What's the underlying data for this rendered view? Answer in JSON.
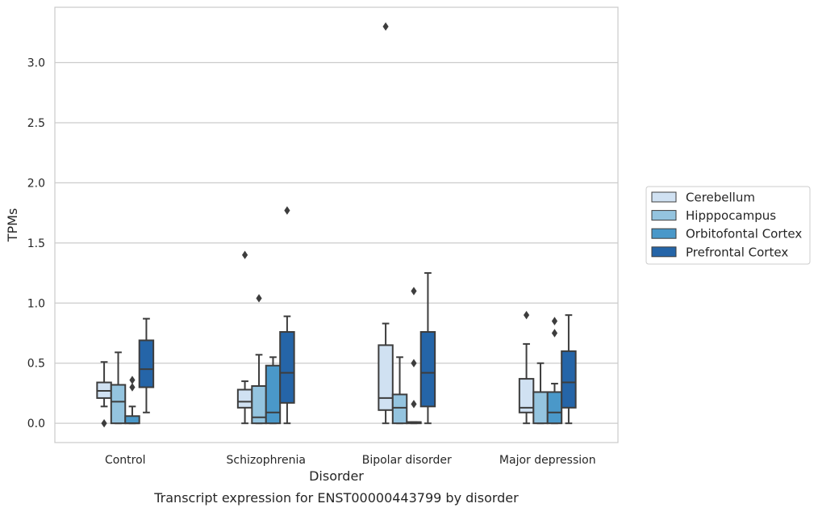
{
  "chart_data": {
    "type": "box",
    "xlabel": "Disorder",
    "ylabel": "TPMs",
    "caption": "Transcript expression for ENST00000443799 by disorder",
    "ylim": [
      -0.16,
      3.46
    ],
    "yticks": [
      0.0,
      0.5,
      1.0,
      1.5,
      2.0,
      2.5,
      3.0
    ],
    "ytick_labels": [
      "0.0",
      "0.5",
      "1.0",
      "1.5",
      "2.0",
      "2.5",
      "3.0"
    ],
    "grid": "horizontal",
    "legend_position": "right",
    "categories": [
      "Control",
      "Schizophrenia",
      "Bipolar disorder",
      "Major depression"
    ],
    "series": [
      {
        "name": "Cerebellum",
        "color": "#d0e1f2",
        "boxes": [
          {
            "whislo": 0.14,
            "q1": 0.21,
            "med": 0.27,
            "q3": 0.34,
            "whishi": 0.51,
            "fliers": [
              0.0
            ]
          },
          {
            "whislo": 0.0,
            "q1": 0.13,
            "med": 0.18,
            "q3": 0.28,
            "whishi": 0.35,
            "fliers": [
              1.4
            ]
          },
          {
            "whislo": 0.0,
            "q1": 0.11,
            "med": 0.21,
            "q3": 0.65,
            "whishi": 0.83,
            "fliers": [
              3.3
            ]
          },
          {
            "whislo": 0.0,
            "q1": 0.09,
            "med": 0.13,
            "q3": 0.37,
            "whishi": 0.66,
            "fliers": [
              0.9
            ]
          }
        ]
      },
      {
        "name": "Hipppocampus",
        "color": "#94c4df",
        "boxes": [
          {
            "whislo": 0.0,
            "q1": 0.0,
            "med": 0.18,
            "q3": 0.32,
            "whishi": 0.59,
            "fliers": []
          },
          {
            "whislo": 0.0,
            "q1": 0.0,
            "med": 0.05,
            "q3": 0.31,
            "whishi": 0.57,
            "fliers": [
              1.04
            ]
          },
          {
            "whislo": 0.0,
            "q1": 0.0,
            "med": 0.13,
            "q3": 0.24,
            "whishi": 0.55,
            "fliers": []
          },
          {
            "whislo": 0.0,
            "q1": 0.0,
            "med": 0.26,
            "q3": 0.26,
            "whishi": 0.5,
            "fliers": []
          }
        ]
      },
      {
        "name": "Orbitofontal Cortex",
        "color": "#4a98c9",
        "boxes": [
          {
            "whislo": 0.0,
            "q1": 0.0,
            "med": 0.0,
            "q3": 0.06,
            "whishi": 0.14,
            "fliers": [
              0.3,
              0.36
            ]
          },
          {
            "whislo": 0.0,
            "q1": 0.0,
            "med": 0.09,
            "q3": 0.48,
            "whishi": 0.55,
            "fliers": []
          },
          {
            "whislo": 0.0,
            "q1": 0.0,
            "med": 0.01,
            "q3": 0.01,
            "whishi": 0.01,
            "fliers": [
              0.16,
              0.5,
              1.1
            ]
          },
          {
            "whislo": 0.0,
            "q1": 0.0,
            "med": 0.09,
            "q3": 0.26,
            "whishi": 0.33,
            "fliers": [
              0.75,
              0.85
            ]
          }
        ]
      },
      {
        "name": "Prefrontal Cortex",
        "color": "#2565a8",
        "boxes": [
          {
            "whislo": 0.09,
            "q1": 0.3,
            "med": 0.45,
            "q3": 0.69,
            "whishi": 0.87,
            "fliers": []
          },
          {
            "whislo": 0.0,
            "q1": 0.17,
            "med": 0.42,
            "q3": 0.76,
            "whishi": 0.89,
            "fliers": [
              1.77
            ]
          },
          {
            "whislo": 0.0,
            "q1": 0.14,
            "med": 0.42,
            "q3": 0.76,
            "whishi": 1.25,
            "fliers": []
          },
          {
            "whislo": 0.0,
            "q1": 0.13,
            "med": 0.34,
            "q3": 0.6,
            "whishi": 0.9,
            "fliers": []
          }
        ]
      }
    ]
  }
}
